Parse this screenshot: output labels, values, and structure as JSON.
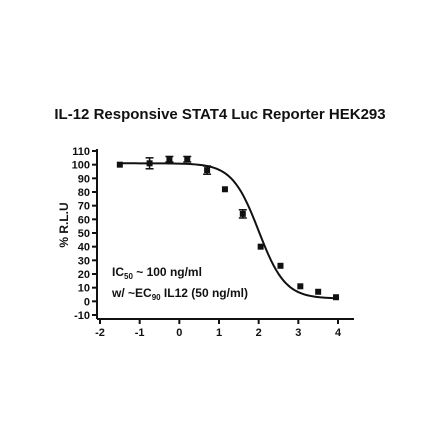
{
  "chart_data": {
    "type": "scatter",
    "title": "IL-12 Responsive STAT4 Luc Reporter HEK293",
    "xlabel": "",
    "ylabel": "% R.L.U",
    "xlim": [
      -2,
      4
    ],
    "ylim": [
      -10,
      110
    ],
    "x_ticks": [
      "-2",
      "-1",
      "0",
      "1",
      "2",
      "3",
      "4"
    ],
    "y_ticks": [
      "-10",
      "0",
      "10",
      "20",
      "30",
      "40",
      "50",
      "60",
      "70",
      "80",
      "90",
      "100",
      "110"
    ],
    "series": [
      {
        "points": [
          {
            "x": -1.5,
            "y": 100,
            "err": 1
          },
          {
            "x": -0.75,
            "y": 101,
            "err": 4
          },
          {
            "x": -0.25,
            "y": 104,
            "err": 2
          },
          {
            "x": 0.2,
            "y": 104,
            "err": 2
          },
          {
            "x": 0.7,
            "y": 96,
            "err": 3
          },
          {
            "x": 1.15,
            "y": 82,
            "err": 1
          },
          {
            "x": 1.6,
            "y": 64,
            "err": 3
          },
          {
            "x": 2.05,
            "y": 40,
            "err": 1
          },
          {
            "x": 2.55,
            "y": 26,
            "err": 1
          },
          {
            "x": 3.05,
            "y": 11,
            "err": 1
          },
          {
            "x": 3.5,
            "y": 7,
            "err": 1
          },
          {
            "x": 3.95,
            "y": 3,
            "err": 1
          }
        ]
      }
    ],
    "fit_curve": {
      "model": "four-parameter logistic",
      "top": 101,
      "bottom": 2,
      "log_ic50": 2.0,
      "hill": 1.3
    },
    "annotations": {
      "line1_main": "IC",
      "line1_sub": "50",
      "line1_rest": " ~ 100 ng/ml",
      "line2_main": "w/ ~EC",
      "line2_sub": "90",
      "line2_rest": " IL12 (50 ng/ml)"
    },
    "colors": {
      "marks": "#111111",
      "background": "#ffffff"
    },
    "grid": false,
    "legend": "none"
  }
}
